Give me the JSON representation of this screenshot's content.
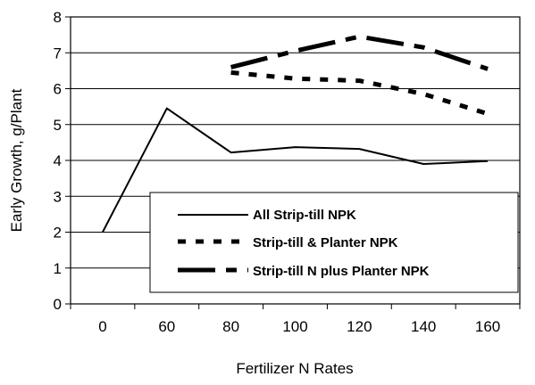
{
  "chart_data": {
    "type": "line",
    "title": "",
    "xlabel": "Fertilizer N Rates",
    "ylabel": "Early Growth, g/Plant",
    "categories": [
      "0",
      "60",
      "80",
      "100",
      "120",
      "140",
      "160"
    ],
    "ylim": [
      0,
      8
    ],
    "yticks": [
      "0",
      "1",
      "2",
      "3",
      "4",
      "5",
      "6",
      "7",
      "8"
    ],
    "grid": "horizontal",
    "legend_position": "bottom-right inside plot",
    "series": [
      {
        "name": "All Strip-till NPK",
        "style": "solid",
        "color": "#000000",
        "values": [
          2.0,
          5.45,
          4.22,
          4.37,
          4.32,
          3.9,
          3.98
        ]
      },
      {
        "name": "Strip-till & Planter NPK",
        "style": "short-dash",
        "color": "#000000",
        "values": [
          null,
          null,
          6.45,
          6.28,
          6.22,
          5.85,
          5.3
        ]
      },
      {
        "name": "Strip-till N plus Planter NPK",
        "style": "long-dash",
        "color": "#000000",
        "values": [
          null,
          null,
          6.6,
          7.05,
          7.45,
          7.15,
          6.55
        ]
      }
    ]
  }
}
